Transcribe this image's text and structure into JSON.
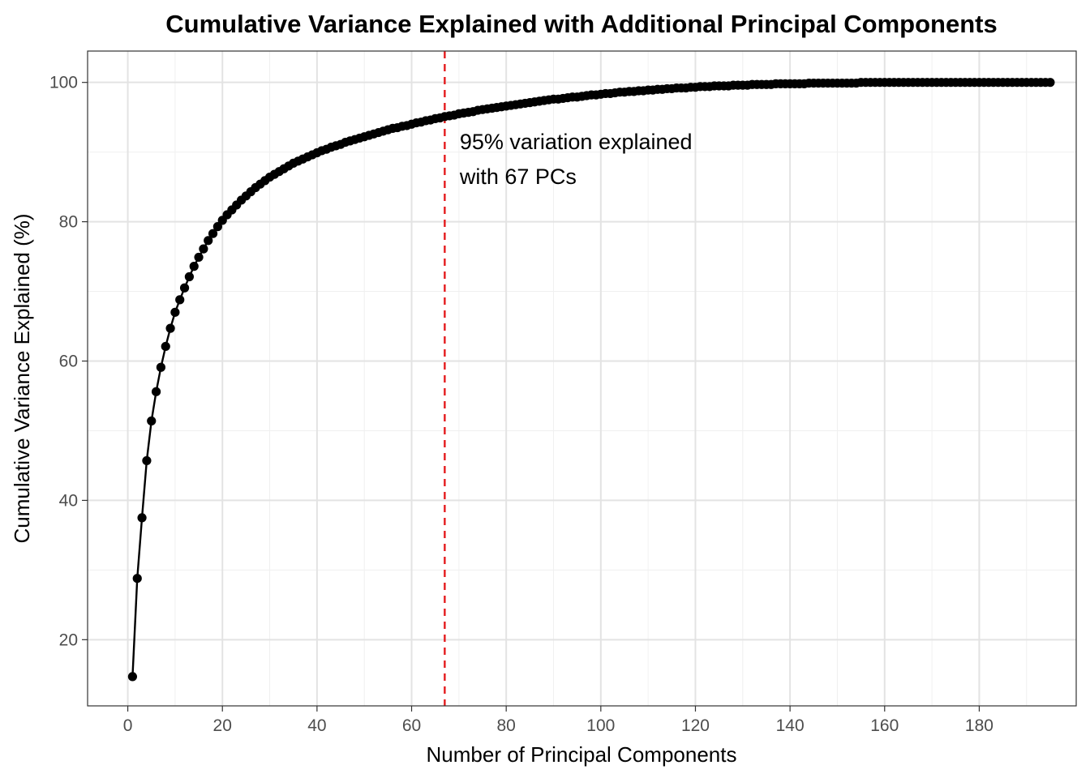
{
  "chart_data": {
    "type": "line",
    "title": "Cumulative Variance Explained with Additional Principal Components",
    "xlabel": "Number of Principal Components",
    "ylabel": "Cumulative Variance Explained (%)",
    "xlim": [
      -8.5,
      200.5
    ],
    "ylim": [
      10.5,
      104.5
    ],
    "x_ticks": [
      0,
      20,
      40,
      60,
      80,
      100,
      120,
      140,
      160,
      180
    ],
    "y_ticks": [
      20,
      40,
      60,
      80,
      100
    ],
    "x_tick_labels": [
      "0",
      "20",
      "40",
      "60",
      "80",
      "100",
      "120",
      "140",
      "160",
      "180"
    ],
    "y_tick_labels": [
      "20",
      "40",
      "60",
      "80",
      "100"
    ],
    "grid": true,
    "legend": "none",
    "series": [
      {
        "color": "#000000",
        "markers": true,
        "x_start": 1,
        "x_end": 191,
        "x_step": 1,
        "values": [
          14.7,
          28.8,
          37.5,
          45.7,
          51.4,
          55.6,
          59.1,
          62.1,
          64.7,
          67.0,
          68.8,
          70.5,
          72.1,
          73.6,
          74.9,
          76.1,
          77.3,
          78.3,
          79.3,
          80.2,
          81.0,
          81.7,
          82.4,
          83.1,
          83.7,
          84.3,
          84.9,
          85.4,
          85.9,
          86.4,
          86.8,
          87.2,
          87.6,
          88.0,
          88.4,
          88.7,
          89.0,
          89.3,
          89.6,
          89.9,
          90.2,
          90.4,
          90.7,
          90.9,
          91.1,
          91.4,
          91.6,
          91.8,
          92.0,
          92.2,
          92.4,
          92.6,
          92.8,
          93.0,
          93.2,
          93.4,
          93.5,
          93.7,
          93.8,
          94.0,
          94.2,
          94.3,
          94.5,
          94.6,
          94.8,
          94.9,
          95.1,
          95.2,
          95.3,
          95.5,
          95.6,
          95.7,
          95.8,
          96.0,
          96.1,
          96.2,
          96.3,
          96.4,
          96.5,
          96.6,
          96.7,
          96.8,
          96.9,
          97.0,
          97.1,
          97.2,
          97.3,
          97.4,
          97.5,
          97.6,
          97.6,
          97.7,
          97.8,
          97.9,
          97.9,
          98.0,
          98.1,
          98.2,
          98.2,
          98.3,
          98.4,
          98.4,
          98.5,
          98.6,
          98.6,
          98.7,
          98.7,
          98.8,
          98.8,
          98.9,
          98.9,
          99.0,
          99.0,
          99.1,
          99.1,
          99.2,
          99.2,
          99.2,
          99.3,
          99.3,
          99.4,
          99.4,
          99.4,
          99.5,
          99.5,
          99.5,
          99.5,
          99.6,
          99.6,
          99.6,
          99.6,
          99.7,
          99.7,
          99.7,
          99.7,
          99.7,
          99.8,
          99.8,
          99.8,
          99.8,
          99.8,
          99.8,
          99.8,
          99.9,
          99.9,
          99.9,
          99.9,
          99.9,
          99.9,
          99.9,
          99.9,
          99.9,
          99.9,
          99.9,
          100.0,
          100.0,
          100.0,
          100.0,
          100.0,
          100.0,
          100.0,
          100.0,
          100.0,
          100.0,
          100.0,
          100.0,
          100.0,
          100.0,
          100.0,
          100.0,
          100.0,
          100.0,
          100.0,
          100.0,
          100.0,
          100.0,
          100.0,
          100.0,
          100.0,
          100.0,
          100.0,
          100.0,
          100.0,
          100.0,
          100.0,
          100.0,
          100.0,
          100.0,
          100.0,
          100.0,
          100.0,
          100.0,
          100.0,
          100.0,
          100.0
        ]
      }
    ],
    "reference_line": {
      "orientation": "vertical",
      "x": 67,
      "color": "#e41a1c",
      "style": "dashed"
    },
    "annotation": {
      "x": 70,
      "lines": [
        "95% variation explained",
        "with 67 PCs"
      ]
    }
  }
}
